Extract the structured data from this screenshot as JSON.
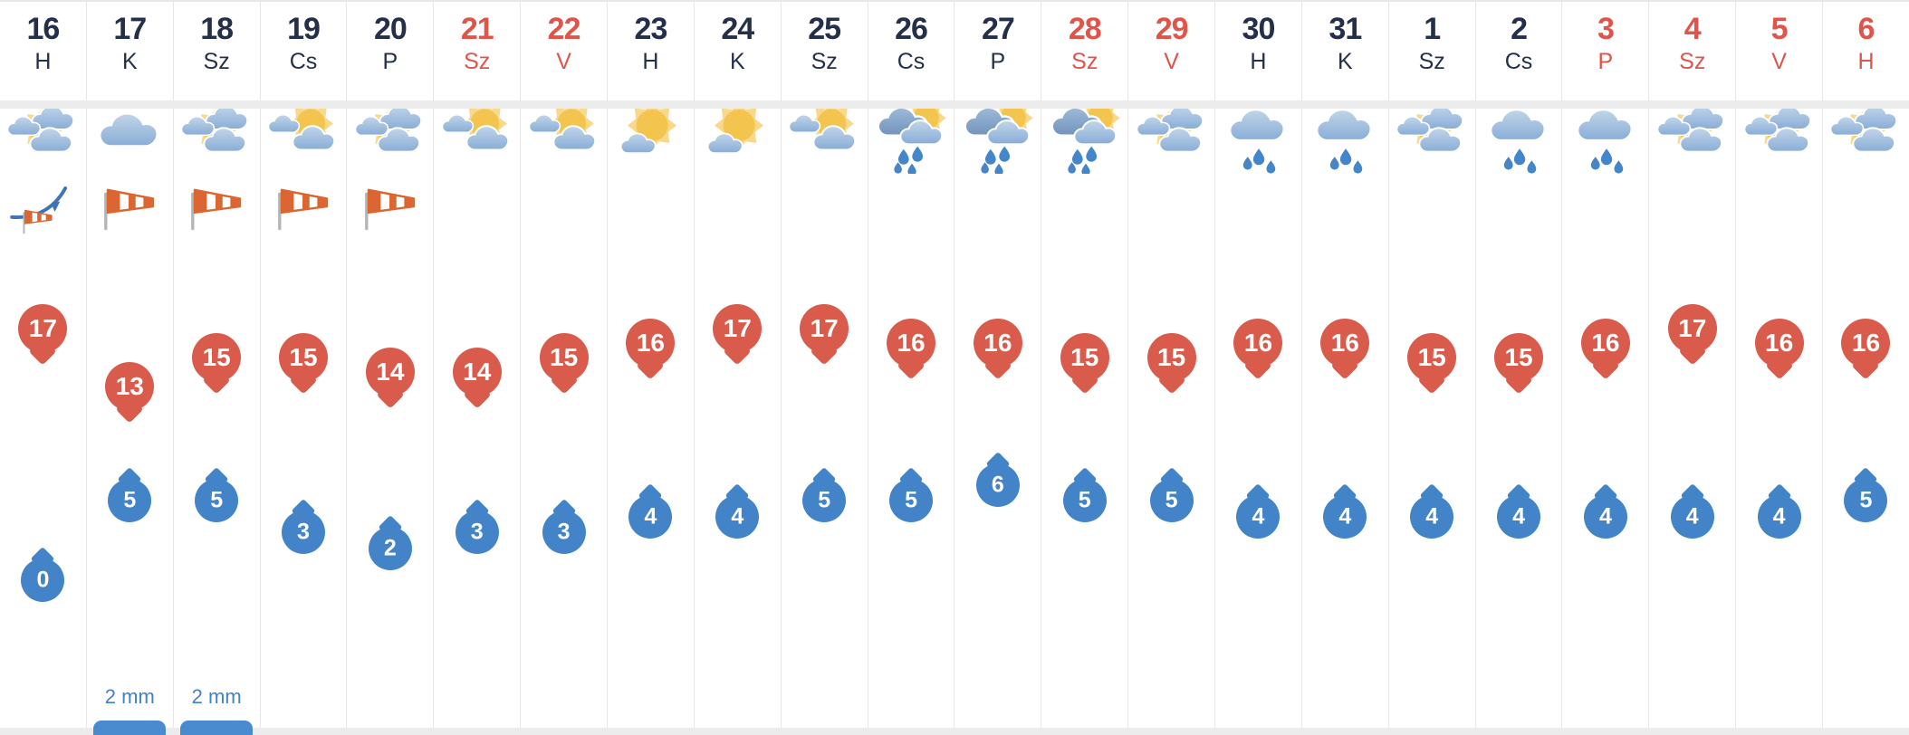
{
  "page": {
    "type": "weekly-weather-forecast-strip",
    "language": "hu"
  },
  "colors": {
    "max_temp_pin": "#d85b4b",
    "min_temp_drop": "#4384c8",
    "weekend_text": "#e0544a",
    "weekday_text": "#24304a",
    "precip_text": "#4182c8",
    "precip_bar": "#4a8bd0",
    "sun": "#f3c54e",
    "cloud_light": "#8cb0d9",
    "windsock_orange": "#dc6531"
  },
  "columns": [
    {
      "date": "16",
      "day": "H",
      "is_red": false,
      "weather_icon": "cloud-sun-cloud-icon",
      "wind_icon": "front-windsock-icon",
      "max_temp": 17,
      "min_temp": 0,
      "precip_label": null
    },
    {
      "date": "17",
      "day": "K",
      "is_red": false,
      "weather_icon": "overcast-icon",
      "wind_icon": "windsock-icon",
      "max_temp": 13,
      "min_temp": 5,
      "precip_label": "2 mm"
    },
    {
      "date": "18",
      "day": "Sz",
      "is_red": false,
      "weather_icon": "cloud-sun-cloud-icon",
      "wind_icon": "windsock-icon",
      "max_temp": 15,
      "min_temp": 5,
      "precip_label": "2 mm"
    },
    {
      "date": "19",
      "day": "Cs",
      "is_red": false,
      "weather_icon": "sun-cloud-icon",
      "wind_icon": "windsock-icon",
      "max_temp": 15,
      "min_temp": 3,
      "precip_label": null
    },
    {
      "date": "20",
      "day": "P",
      "is_red": false,
      "weather_icon": "cloud-sun-cloud-icon",
      "wind_icon": "windsock-icon",
      "max_temp": 14,
      "min_temp": 2,
      "precip_label": null
    },
    {
      "date": "21",
      "day": "Sz",
      "is_red": true,
      "weather_icon": "sun-cloud-icon",
      "wind_icon": null,
      "max_temp": 14,
      "min_temp": 3,
      "precip_label": null
    },
    {
      "date": "22",
      "day": "V",
      "is_red": true,
      "weather_icon": "sun-cloud-icon",
      "wind_icon": null,
      "max_temp": 15,
      "min_temp": 3,
      "precip_label": null
    },
    {
      "date": "23",
      "day": "H",
      "is_red": false,
      "weather_icon": "sunny-cloud-icon",
      "wind_icon": null,
      "max_temp": 16,
      "min_temp": 4,
      "precip_label": null
    },
    {
      "date": "24",
      "day": "K",
      "is_red": false,
      "weather_icon": "sunny-cloud-icon",
      "wind_icon": null,
      "max_temp": 17,
      "min_temp": 4,
      "precip_label": null
    },
    {
      "date": "25",
      "day": "Sz",
      "is_red": false,
      "weather_icon": "sun-cloud-icon",
      "wind_icon": null,
      "max_temp": 17,
      "min_temp": 5,
      "precip_label": null
    },
    {
      "date": "26",
      "day": "Cs",
      "is_red": false,
      "weather_icon": "rain-sun-icon",
      "wind_icon": null,
      "max_temp": 16,
      "min_temp": 5,
      "precip_label": null
    },
    {
      "date": "27",
      "day": "P",
      "is_red": false,
      "weather_icon": "rain-sun-icon",
      "wind_icon": null,
      "max_temp": 16,
      "min_temp": 6,
      "precip_label": null
    },
    {
      "date": "28",
      "day": "Sz",
      "is_red": true,
      "weather_icon": "rain-sun-icon",
      "wind_icon": null,
      "max_temp": 15,
      "min_temp": 5,
      "precip_label": null
    },
    {
      "date": "29",
      "day": "V",
      "is_red": true,
      "weather_icon": "cloud-sun-cloud-icon",
      "wind_icon": null,
      "max_temp": 15,
      "min_temp": 5,
      "precip_label": null
    },
    {
      "date": "30",
      "day": "H",
      "is_red": false,
      "weather_icon": "rain-icon",
      "wind_icon": null,
      "max_temp": 16,
      "min_temp": 4,
      "precip_label": null
    },
    {
      "date": "31",
      "day": "K",
      "is_red": false,
      "weather_icon": "rain-icon",
      "wind_icon": null,
      "max_temp": 16,
      "min_temp": 4,
      "precip_label": null
    },
    {
      "date": "1",
      "day": "Sz",
      "is_red": false,
      "weather_icon": "cloud-sun-cloud-icon",
      "wind_icon": null,
      "max_temp": 15,
      "min_temp": 4,
      "precip_label": null
    },
    {
      "date": "2",
      "day": "Cs",
      "is_red": false,
      "weather_icon": "rain-icon",
      "wind_icon": null,
      "max_temp": 15,
      "min_temp": 4,
      "precip_label": null
    },
    {
      "date": "3",
      "day": "P",
      "is_red": true,
      "weather_icon": "rain-icon",
      "wind_icon": null,
      "max_temp": 16,
      "min_temp": 4,
      "precip_label": null
    },
    {
      "date": "4",
      "day": "Sz",
      "is_red": true,
      "weather_icon": "cloud-sun-cloud-icon",
      "wind_icon": null,
      "max_temp": 17,
      "min_temp": 4,
      "precip_label": null
    },
    {
      "date": "5",
      "day": "V",
      "is_red": true,
      "weather_icon": "cloud-sun-cloud-icon",
      "wind_icon": null,
      "max_temp": 16,
      "min_temp": 4,
      "precip_label": null
    },
    {
      "date": "6",
      "day": "H",
      "is_red": true,
      "weather_icon": "cloud-sun-cloud-icon",
      "wind_icon": null,
      "max_temp": 16,
      "min_temp": 5,
      "precip_label": null
    }
  ]
}
